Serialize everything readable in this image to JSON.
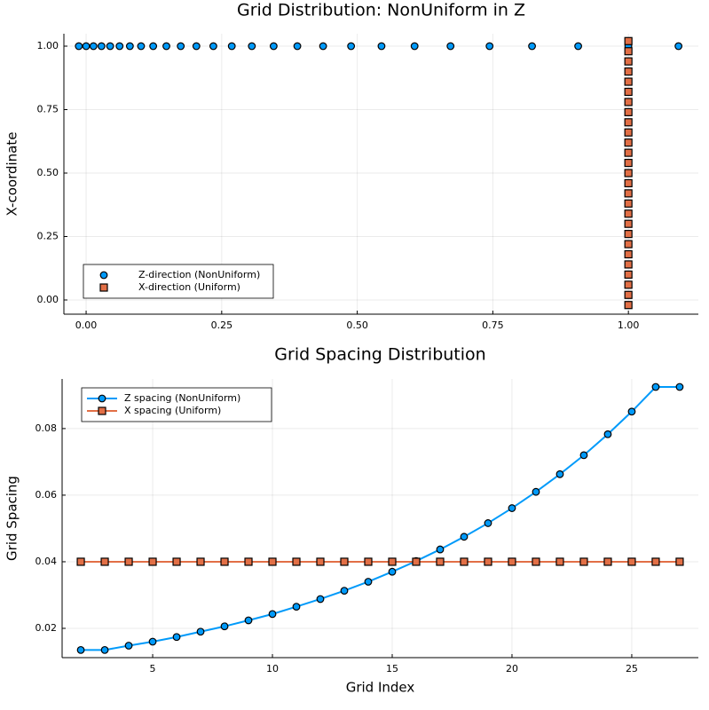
{
  "chart_data": [
    {
      "type": "scatter",
      "title": "Grid Distribution: NonUniform in Z",
      "ylabel": "X-coordinate",
      "series": [
        {
          "name": "Z-direction (NonUniform)",
          "color": "#009afa",
          "marker": "circle",
          "x": [
            -0.0135,
            0,
            0.0135,
            0.0283,
            0.0443,
            0.0617,
            0.0807,
            0.1013,
            0.1237,
            0.148,
            0.1745,
            0.2033,
            0.2346,
            0.2686,
            0.3056,
            0.3458,
            0.3895,
            0.437,
            0.4886,
            0.5447,
            0.6057,
            0.672,
            0.744,
            0.8223,
            0.9074,
            0.9999,
            1.0924
          ],
          "values": [
            1,
            1,
            1,
            1,
            1,
            1,
            1,
            1,
            1,
            1,
            1,
            1,
            1,
            1,
            1,
            1,
            1,
            1,
            1,
            1,
            1,
            1,
            1,
            1,
            1,
            1,
            1
          ]
        },
        {
          "name": "X-direction (Uniform)",
          "color": "#e26f46",
          "marker": "square",
          "x": [
            1,
            1,
            1,
            1,
            1,
            1,
            1,
            1,
            1,
            1,
            1,
            1,
            1,
            1,
            1,
            1,
            1,
            1,
            1,
            1,
            1,
            1,
            1,
            1,
            1,
            1,
            1
          ],
          "values": [
            -0.02,
            0.02,
            0.06,
            0.1,
            0.14,
            0.18,
            0.22,
            0.26,
            0.3,
            0.34,
            0.38,
            0.42,
            0.46,
            0.5,
            0.54,
            0.58,
            0.62,
            0.66,
            0.7,
            0.74,
            0.78,
            0.82,
            0.86,
            0.9,
            0.94,
            0.98,
            1.02
          ]
        }
      ],
      "xlim": [
        -0.041,
        1.129
      ],
      "ylim": [
        -0.056,
        1.049
      ],
      "xticks": [
        {
          "value": 0,
          "label": "0.00"
        },
        {
          "value": 0.25,
          "label": "0.25"
        },
        {
          "value": 0.5,
          "label": "0.50"
        },
        {
          "value": 0.75,
          "label": "0.75"
        },
        {
          "value": 1,
          "label": "1.00"
        }
      ],
      "yticks": [
        {
          "value": 0,
          "label": "0.00"
        },
        {
          "value": 0.25,
          "label": "0.25"
        },
        {
          "value": 0.5,
          "label": "0.50"
        },
        {
          "value": 0.75,
          "label": "0.75"
        },
        {
          "value": 1,
          "label": "1.00"
        }
      ],
      "grid": true,
      "legend": "bottom left"
    },
    {
      "type": "line",
      "title": "Grid Spacing Distribution",
      "xlabel": "Grid Index",
      "ylabel": "Grid Spacing",
      "x": [
        2,
        3,
        4,
        5,
        6,
        7,
        8,
        9,
        10,
        11,
        12,
        13,
        14,
        15,
        16,
        17,
        18,
        19,
        20,
        21,
        22,
        23,
        24,
        25,
        26,
        27
      ],
      "series": [
        {
          "name": "Z spacing (NonUniform)",
          "color": "#009afa",
          "marker": "circle",
          "values": [
            0.0135,
            0.0135,
            0.0148,
            0.016,
            0.0174,
            0.019,
            0.0206,
            0.0224,
            0.0243,
            0.0265,
            0.0288,
            0.0313,
            0.034,
            0.037,
            0.0402,
            0.0437,
            0.0475,
            0.0516,
            0.0561,
            0.061,
            0.0663,
            0.072,
            0.0783,
            0.0851,
            0.0925,
            0.0925
          ]
        },
        {
          "name": "X spacing (Uniform)",
          "color": "#e26f46",
          "marker": "square",
          "values": [
            0.04,
            0.04,
            0.04,
            0.04,
            0.04,
            0.04,
            0.04,
            0.04,
            0.04,
            0.04,
            0.04,
            0.04,
            0.04,
            0.04,
            0.04,
            0.04,
            0.04,
            0.04,
            0.04,
            0.04,
            0.04,
            0.04,
            0.04,
            0.04,
            0.04,
            0.04
          ]
        }
      ],
      "xlim": [
        1.22,
        27.78
      ],
      "ylim": [
        0.0112,
        0.0949
      ],
      "xticks": [
        5,
        10,
        15,
        20,
        25
      ],
      "yticks": [
        0.02,
        0.04,
        0.06,
        0.08
      ],
      "grid": true,
      "legend": "top left"
    }
  ]
}
